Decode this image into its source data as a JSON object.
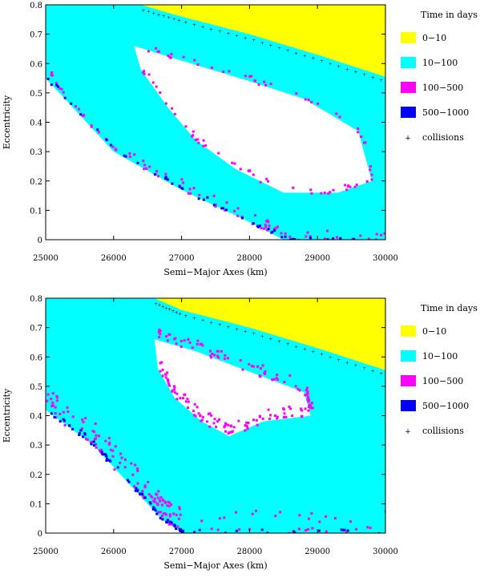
{
  "chart_data": [
    {
      "type": "heatmap",
      "xlabel": "Semi−Major Axes (km)",
      "ylabel": "Eccentricity",
      "xlim": [
        25000,
        30000
      ],
      "ylim": [
        0,
        0.8
      ],
      "xticks": [
        "25000",
        "26000",
        "27000",
        "28000",
        "29000",
        "30000"
      ],
      "yticks": [
        "0",
        "0.1",
        "0.2",
        "0.3",
        "0.4",
        "0.5",
        "0.6",
        "0.7",
        "0.8"
      ],
      "legend": {
        "title": "Time in days",
        "placement": "right",
        "items": [
          {
            "label": "0−10",
            "color": "#ffff00",
            "marker": "square"
          },
          {
            "label": "10−100",
            "color": "#00ffff",
            "marker": "square"
          },
          {
            "label": "100−500",
            "color": "#ff00ff",
            "marker": "square"
          },
          {
            "label": "500−1000",
            "color": "#0000ff",
            "marker": "square"
          },
          {
            "label": "collisions",
            "color": "#000000",
            "marker": "plus"
          }
        ]
      },
      "regions": {
        "yellow_lower_boundary": [
          [
            26400,
            0.8
          ],
          [
            27000,
            0.76
          ],
          [
            28000,
            0.7
          ],
          [
            29000,
            0.63
          ],
          [
            30000,
            0.555
          ]
        ],
        "white_upper_left": [
          [
            25000,
            0.55
          ],
          [
            26000,
            0.3
          ],
          [
            27000,
            0.17
          ],
          [
            28000,
            0.06
          ],
          [
            28500,
            0.0
          ],
          [
            30000,
            0.0
          ]
        ],
        "white_hole": [
          [
            26300,
            0.66
          ],
          [
            27000,
            0.61
          ],
          [
            28000,
            0.54
          ],
          [
            28800,
            0.48
          ],
          [
            29600,
            0.37
          ],
          [
            29800,
            0.2
          ],
          [
            29300,
            0.16
          ],
          [
            28500,
            0.16
          ],
          [
            27800,
            0.24
          ],
          [
            27200,
            0.34
          ],
          [
            26800,
            0.45
          ],
          [
            26400,
            0.58
          ]
        ]
      }
    },
    {
      "type": "heatmap",
      "xlabel": "Semi−Major Axes (km)",
      "ylabel": "Eccentricity",
      "xlim": [
        25000,
        30000
      ],
      "ylim": [
        0,
        0.8
      ],
      "xticks": [
        "25000",
        "26000",
        "27000",
        "28000",
        "29000",
        "30000"
      ],
      "yticks": [
        "0",
        "0.1",
        "0.2",
        "0.3",
        "0.4",
        "0.5",
        "0.6",
        "0.7",
        "0.8"
      ],
      "legend": {
        "title": "Time in days",
        "placement": "right",
        "items": [
          {
            "label": "0−10",
            "color": "#ffff00",
            "marker": "square"
          },
          {
            "label": "10−100",
            "color": "#00ffff",
            "marker": "square"
          },
          {
            "label": "100−500",
            "color": "#ff00ff",
            "marker": "square"
          },
          {
            "label": "500−1000",
            "color": "#0000ff",
            "marker": "square"
          },
          {
            "label": "collisions",
            "color": "#000000",
            "marker": "plus"
          }
        ]
      },
      "regions": {
        "yellow_lower_boundary": [
          [
            26600,
            0.8
          ],
          [
            27000,
            0.76
          ],
          [
            28000,
            0.7
          ],
          [
            29000,
            0.63
          ],
          [
            30000,
            0.555
          ]
        ],
        "white_upper_left": [
          [
            25000,
            0.42
          ],
          [
            25700,
            0.3
          ],
          [
            26300,
            0.15
          ],
          [
            26700,
            0.05
          ],
          [
            27000,
            0.0
          ],
          [
            30000,
            0.0
          ]
        ],
        "white_hole": [
          [
            26600,
            0.66
          ],
          [
            27200,
            0.62
          ],
          [
            28000,
            0.55
          ],
          [
            28800,
            0.48
          ],
          [
            28900,
            0.4
          ],
          [
            28200,
            0.38
          ],
          [
            27700,
            0.33
          ],
          [
            27300,
            0.38
          ],
          [
            26900,
            0.46
          ],
          [
            26650,
            0.56
          ]
        ]
      }
    }
  ]
}
